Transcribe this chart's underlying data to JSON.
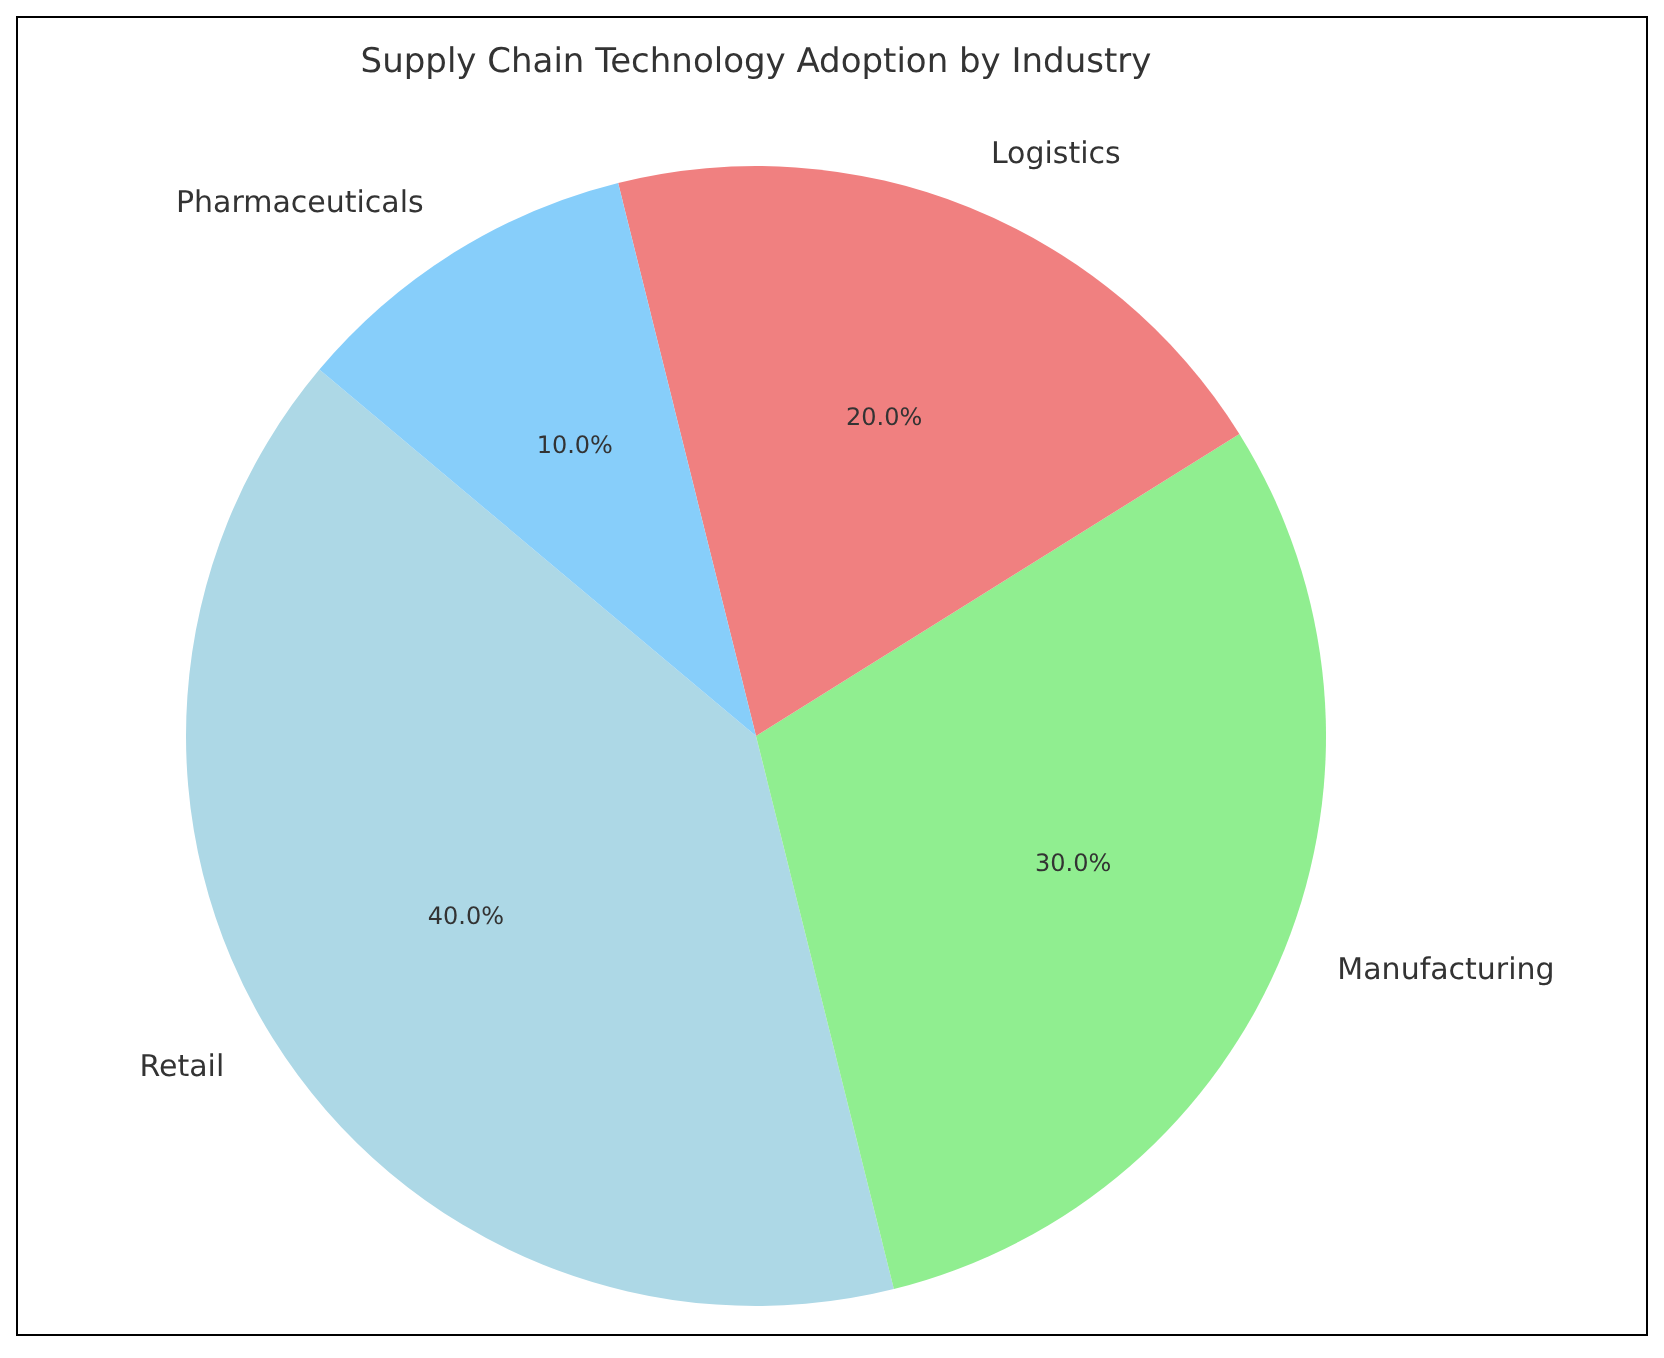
{
  "chart_data": {
    "type": "pie",
    "title": "Supply Chain Technology Adoption by Industry",
    "categories": [
      "Retail",
      "Manufacturing",
      "Logistics",
      "Pharmaceuticals"
    ],
    "values": [
      40,
      30,
      20,
      10
    ],
    "value_labels": [
      "40.0%",
      "30.0%",
      "20.0%",
      "10.0%"
    ],
    "colors": [
      "#add8e6",
      "#90ee90",
      "#f08080",
      "#87cefa"
    ]
  }
}
